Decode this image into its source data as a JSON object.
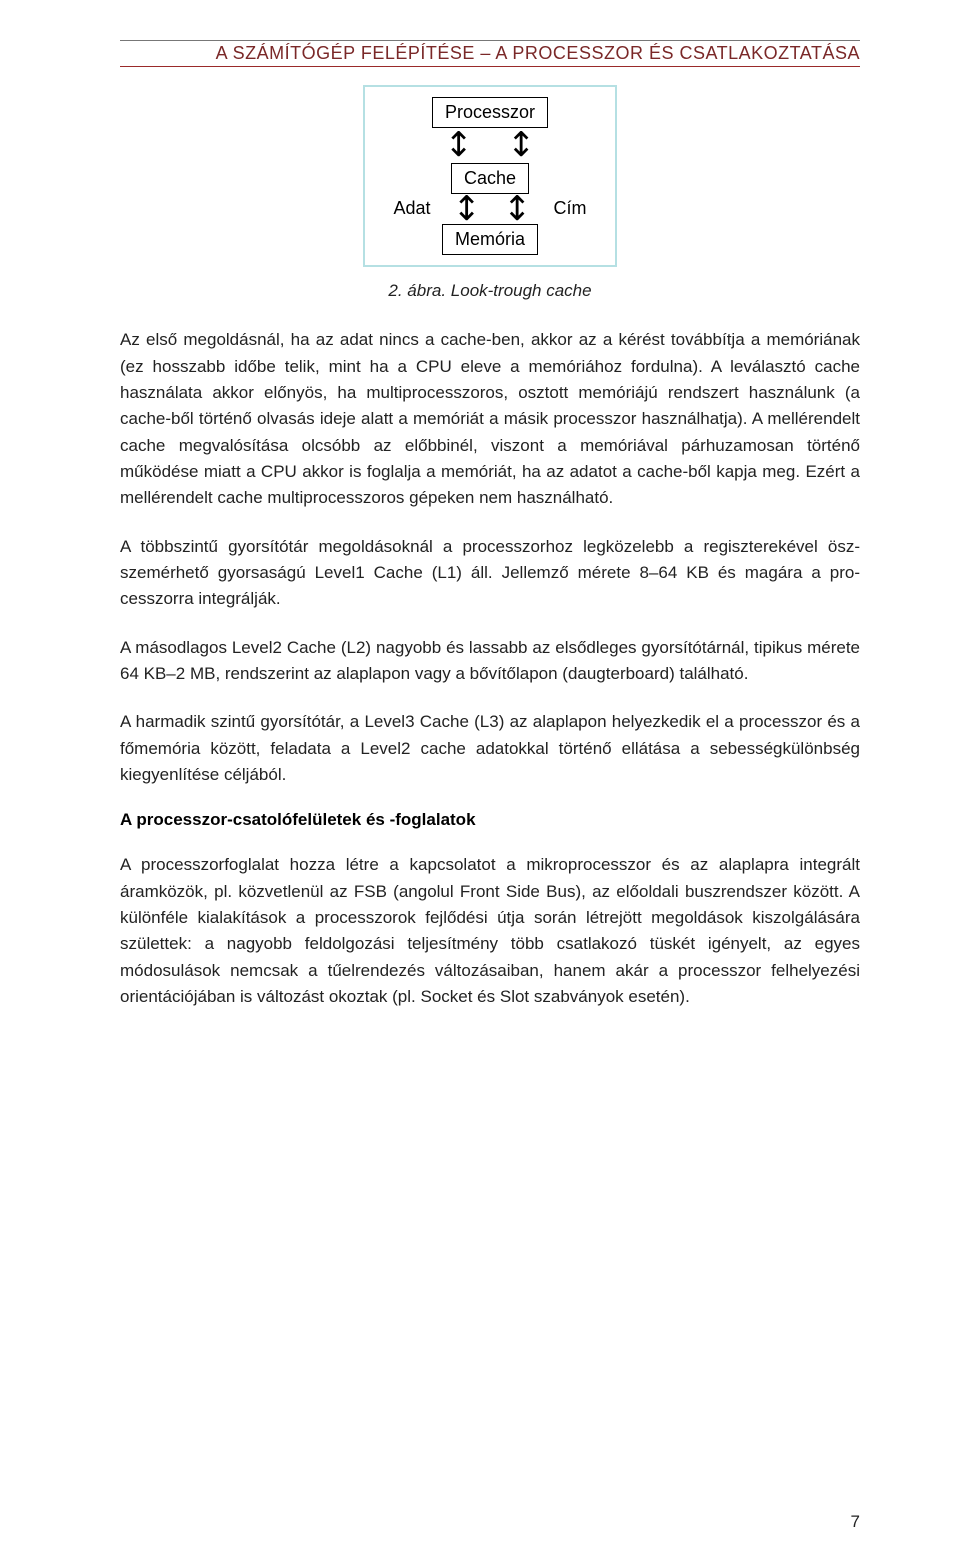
{
  "header": {
    "title": "A SZÁMÍTÓGÉP FELÉPÍTÉSE – A PROCESSZOR ÉS CSATLAKOZTATÁSA",
    "underline_color": "#9a2a2a",
    "text_color": "#7a2828"
  },
  "diagram": {
    "type": "block-arrow",
    "border_color": "#b5e0e3",
    "boxes": {
      "top": "Processzor",
      "middle": "Cache",
      "bottom": "Memória"
    },
    "labels": {
      "left": "Adat",
      "right": "Cím"
    },
    "arrow_glyph": "↕",
    "box_border_color": "#000000",
    "font_family": "Arial",
    "font_size_pt": 14
  },
  "caption": "2. ábra. Look-trough cache",
  "paragraphs": {
    "p1": "Az első megoldásnál, ha az adat nincs a cache-ben, akkor az a kérést továbbítja a memóriának (ez hosszabb időbe telik, mint ha a CPU eleve a memóriához fordulna). A leválasztó cache használata akkor előnyös, ha multiprocesszoros, osztott memóriájú rendszert használunk (a cache-ből történő olvasás ideje alatt a memóriát a másik processzor használhatja). A mellérendelt cache megvalósítása olcsóbb az előbbinél, viszont a memóriával párhuzamosan történő működése miatt a CPU akkor is foglalja a memóriát, ha az adatot a cache-ből kapja meg. Ezért a mellérendelt cache multiprocesszoros gépeken nem használható.",
    "p2": "A többszintű gyorsítótár megoldásoknál a processzorhoz legközelebb a regiszterekével ösz­szemérhető gyorsaságú Level1 Cache (L1) áll. Jellemző mérete 8–64 KB és magára a pro­cesszorra integrálják.",
    "p3": "A másodlagos Level2 Cache (L2) nagyobb és lassabb az elsődleges gyorsítótárnál, tipikus mérete 64 KB–2 MB, rendszerint az alaplapon vagy a bővítőlapon (daugterboard) található.",
    "p4": "A harmadik szintű gyorsítótár, a Level3 Cache (L3) az alaplapon helyezkedik el a processzor és a főmemória között, feladata a Level2 cache adatokkal történő ellátása a sebességkülönb­ség kiegyenlítése céljából.",
    "p5": "A processzorfoglalat hozza létre a kapcsolatot a mikroprocesszor és az alaplapra integrált áramközök, pl. közvetlenül az FSB (angolul Front Side Bus), az előoldali buszrendszer között. A különféle kialakítások a processzorok fejlődési útja során létrejött megoldások kiszolgálá­sára születtek: a nagyobb feldolgozási teljesítmény több csatlakozó tüskét igényelt, az egyes módosulások nemcsak a tűelrendezés változásaiban, hanem akár a processzor felhelyezési orientációjában is változást okoztak (pl. Socket és Slot szabványok esetén)."
  },
  "section_heading": "A processzor-csatolófelületek és -foglalatok",
  "page_number": "7",
  "colors": {
    "body_text": "#222222",
    "background": "#ffffff"
  }
}
